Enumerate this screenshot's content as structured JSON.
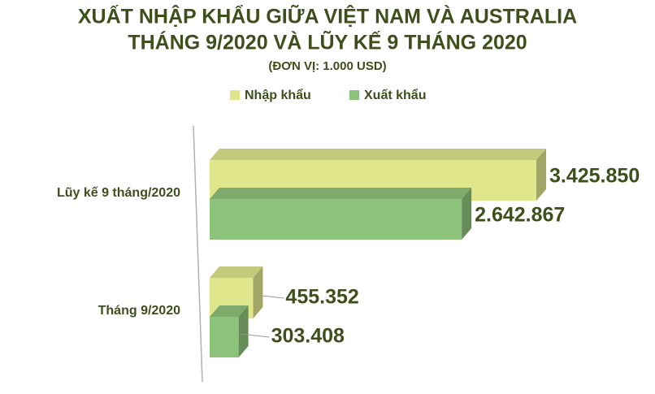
{
  "chart_data": {
    "type": "bar3d-horizontal",
    "title": [
      "XUẤT NHẬP KHẨU GIỮA VIỆT NAM VÀ AUSTRALIA",
      "THÁNG 9/2020 VÀ LŨY KẾ 9 THÁNG 2020"
    ],
    "subtitle": "(ĐƠN VỊ: 1.000 USD)",
    "categories": [
      "Lũy kế 9 tháng/2020",
      "Tháng 9/2020"
    ],
    "series": [
      {
        "name": "Nhập khẩu",
        "color": "#dfe68c",
        "values": [
          3425850,
          455352
        ],
        "value_labels": [
          "3.425.850",
          "455.352"
        ]
      },
      {
        "name": "Xuất khẩu",
        "color": "#8dc27a",
        "values": [
          2642867,
          303408
        ],
        "value_labels": [
          "2.642.867",
          "303.408"
        ]
      }
    ]
  }
}
